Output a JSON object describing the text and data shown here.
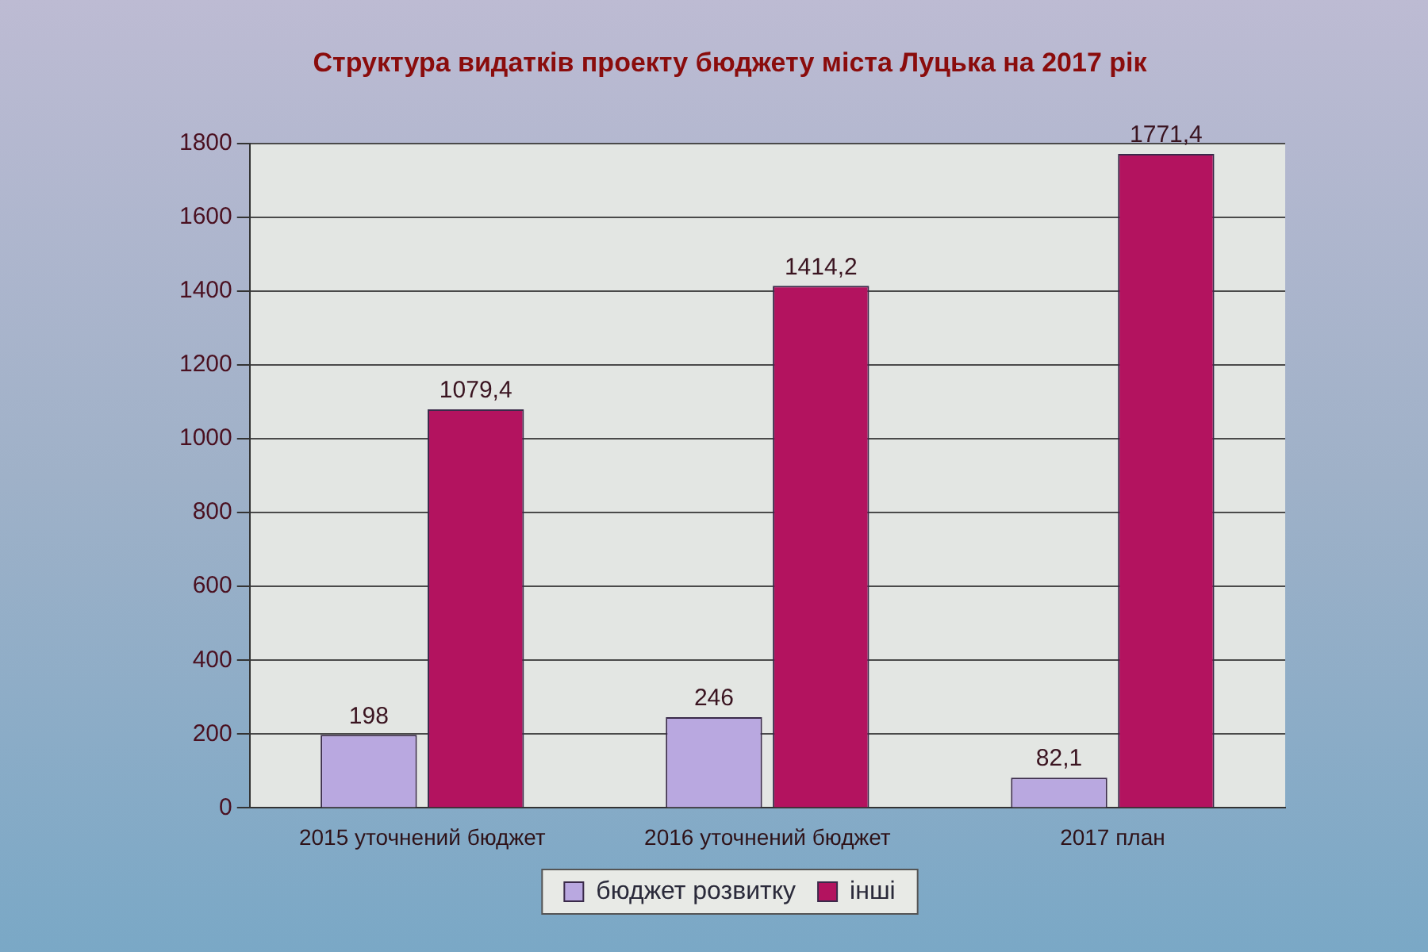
{
  "chart_data": {
    "type": "bar",
    "title": "Структура видатків проекту бюджету міста Луцька на 2017 рік",
    "categories": [
      "2015 уточнений бюджет",
      "2016 уточнений бюджет",
      "2017 план"
    ],
    "series": [
      {
        "name": "бюджет розвитку",
        "color": "#b9a8e0",
        "values": [
          198,
          246,
          82.1
        ],
        "value_labels": [
          "198",
          "246",
          "82,1"
        ]
      },
      {
        "name": "інші",
        "color": "#b3135f",
        "values": [
          1079.4,
          1414.2,
          1771.4
        ],
        "value_labels": [
          "1079,4",
          "1414,2",
          "1771,4"
        ]
      }
    ],
    "ylim": [
      0,
      1800
    ],
    "yticks": [
      0,
      200,
      400,
      600,
      800,
      1000,
      1200,
      1400,
      1600,
      1800
    ],
    "grid": "y",
    "legend": "bottom"
  }
}
